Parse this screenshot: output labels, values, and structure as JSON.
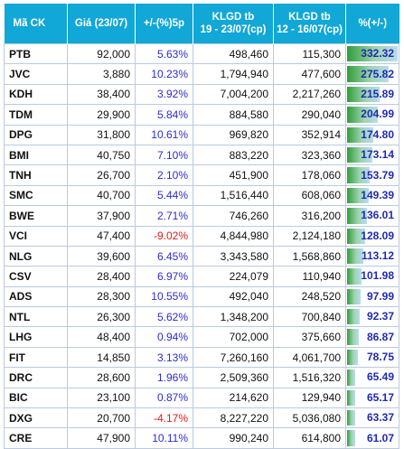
{
  "headers": {
    "code": "Mã CK",
    "price": "Giá (23/07)",
    "change5p": "+/-(%)5p",
    "vol1": [
      "KLGD tb",
      "19 - 23/07(cp)"
    ],
    "vol2": [
      "KLGD tb",
      "12 - 16/07(cp)"
    ],
    "pct": "%(+/-)"
  },
  "colors": {
    "header_bg": "#11a7d6",
    "positive": "#2b2bd1",
    "negative": "#e01a1a",
    "bar_value": "#1f2ab3"
  },
  "max_pct": 332.32,
  "rows": [
    {
      "code": "PTB",
      "price": "92,000",
      "chg": "5.63%",
      "chg_value": 5.63,
      "vol1": "498,460",
      "vol2": "115,300",
      "pct": "332.32",
      "pct_value": 332.32
    },
    {
      "code": "JVC",
      "price": "3,880",
      "chg": "10.23%",
      "chg_value": 10.23,
      "vol1": "1,794,940",
      "vol2": "477,600",
      "pct": "275.82",
      "pct_value": 275.82
    },
    {
      "code": "KDH",
      "price": "38,400",
      "chg": "3.92%",
      "chg_value": 3.92,
      "vol1": "7,004,200",
      "vol2": "2,217,260",
      "pct": "215.89",
      "pct_value": 215.89
    },
    {
      "code": "TDM",
      "price": "29,900",
      "chg": "5.84%",
      "chg_value": 5.84,
      "vol1": "884,580",
      "vol2": "290,040",
      "pct": "204.99",
      "pct_value": 204.99
    },
    {
      "code": "DPG",
      "price": "31,800",
      "chg": "10.61%",
      "chg_value": 10.61,
      "vol1": "969,820",
      "vol2": "352,914",
      "pct": "174.80",
      "pct_value": 174.8
    },
    {
      "code": "BMI",
      "price": "40,750",
      "chg": "7.10%",
      "chg_value": 7.1,
      "vol1": "883,220",
      "vol2": "323,360",
      "pct": "173.14",
      "pct_value": 173.14
    },
    {
      "code": "TNH",
      "price": "26,700",
      "chg": "2.10%",
      "chg_value": 2.1,
      "vol1": "451,900",
      "vol2": "178,060",
      "pct": "153.79",
      "pct_value": 153.79
    },
    {
      "code": "SMC",
      "price": "40,700",
      "chg": "5.44%",
      "chg_value": 5.44,
      "vol1": "1,516,440",
      "vol2": "608,060",
      "pct": "149.39",
      "pct_value": 149.39
    },
    {
      "code": "BWE",
      "price": "37,900",
      "chg": "2.71%",
      "chg_value": 2.71,
      "vol1": "746,260",
      "vol2": "316,200",
      "pct": "136.01",
      "pct_value": 136.01
    },
    {
      "code": "VCI",
      "price": "47,400",
      "chg": "-9.02%",
      "chg_value": -9.02,
      "vol1": "4,844,980",
      "vol2": "2,124,180",
      "pct": "128.09",
      "pct_value": 128.09
    },
    {
      "code": "NLG",
      "price": "39,600",
      "chg": "6.45%",
      "chg_value": 6.45,
      "vol1": "3,343,580",
      "vol2": "1,568,860",
      "pct": "113.12",
      "pct_value": 113.12
    },
    {
      "code": "CSV",
      "price": "28,400",
      "chg": "6.97%",
      "chg_value": 6.97,
      "vol1": "224,079",
      "vol2": "110,940",
      "pct": "101.98",
      "pct_value": 101.98
    },
    {
      "code": "ADS",
      "price": "28,300",
      "chg": "10.55%",
      "chg_value": 10.55,
      "vol1": "492,040",
      "vol2": "248,520",
      "pct": "97.99",
      "pct_value": 97.99
    },
    {
      "code": "NTL",
      "price": "26,300",
      "chg": "5.62%",
      "chg_value": 5.62,
      "vol1": "1,348,200",
      "vol2": "700,840",
      "pct": "92.37",
      "pct_value": 92.37
    },
    {
      "code": "LHG",
      "price": "48,400",
      "chg": "0.94%",
      "chg_value": 0.94,
      "vol1": "702,000",
      "vol2": "375,660",
      "pct": "86.87",
      "pct_value": 86.87
    },
    {
      "code": "FIT",
      "price": "14,850",
      "chg": "3.13%",
      "chg_value": 3.13,
      "vol1": "7,260,160",
      "vol2": "4,061,700",
      "pct": "78.75",
      "pct_value": 78.75
    },
    {
      "code": "DRC",
      "price": "28,600",
      "chg": "1.96%",
      "chg_value": 1.96,
      "vol1": "2,509,360",
      "vol2": "1,516,320",
      "pct": "65.49",
      "pct_value": 65.49
    },
    {
      "code": "BIC",
      "price": "23,100",
      "chg": "0.87%",
      "chg_value": 0.87,
      "vol1": "214,620",
      "vol2": "129,940",
      "pct": "65.17",
      "pct_value": 65.17
    },
    {
      "code": "DXG",
      "price": "20,700",
      "chg": "-4.17%",
      "chg_value": -4.17,
      "vol1": "8,227,220",
      "vol2": "5,036,080",
      "pct": "63.37",
      "pct_value": 63.37
    },
    {
      "code": "CRE",
      "price": "47,900",
      "chg": "10.11%",
      "chg_value": 10.11,
      "vol1": "990,240",
      "vol2": "614,800",
      "pct": "61.07",
      "pct_value": 61.07
    }
  ]
}
